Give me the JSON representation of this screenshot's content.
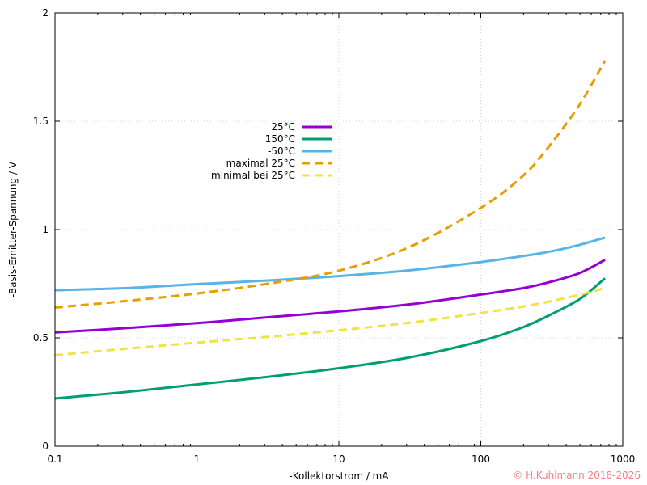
{
  "chart_data": {
    "type": "line",
    "title": "",
    "xlabel": "-Kollektorstrom / mA",
    "ylabel": "-Basis-Emitter-Spannung / V",
    "xscale": "log",
    "xlim": [
      0.1,
      1000
    ],
    "ylim": [
      0,
      2
    ],
    "x_ticks": [
      0.1,
      1,
      10,
      100,
      1000
    ],
    "x_tick_labels": [
      "0.1",
      "1",
      "10",
      "100",
      "1000"
    ],
    "y_ticks": [
      0,
      0.5,
      1,
      1.5,
      2
    ],
    "y_tick_labels": [
      "0",
      "0.5",
      "1",
      "1.5",
      "2"
    ],
    "grid": true,
    "legend_position": "center-left",
    "series": [
      {
        "name": "25°C",
        "color": "#9400d3",
        "dash": "solid",
        "x": [
          0.1,
          0.316,
          1,
          3.16,
          10,
          31.6,
          100,
          200,
          316,
          500,
          750
        ],
        "y": [
          0.525,
          0.545,
          0.568,
          0.595,
          0.622,
          0.655,
          0.7,
          0.73,
          0.76,
          0.8,
          0.86
        ]
      },
      {
        "name": "150°C",
        "color": "#009e73",
        "dash": "solid",
        "x": [
          0.1,
          0.316,
          1,
          3.16,
          10,
          31.6,
          100,
          200,
          316,
          500,
          750
        ],
        "y": [
          0.22,
          0.25,
          0.285,
          0.32,
          0.36,
          0.41,
          0.485,
          0.55,
          0.61,
          0.68,
          0.775
        ]
      },
      {
        "name": "-50°C",
        "color": "#56b4e9",
        "dash": "solid",
        "x": [
          0.1,
          0.316,
          1,
          3.16,
          10,
          31.6,
          100,
          200,
          316,
          500,
          750
        ],
        "y": [
          0.72,
          0.73,
          0.748,
          0.765,
          0.785,
          0.812,
          0.85,
          0.878,
          0.9,
          0.93,
          0.963
        ]
      },
      {
        "name": "maximal 25°C",
        "color": "#e69f00",
        "dash": "dashed",
        "x": [
          0.1,
          0.316,
          1,
          3.16,
          10,
          31.6,
          100,
          200,
          316,
          500,
          750
        ],
        "y": [
          0.64,
          0.67,
          0.705,
          0.75,
          0.81,
          0.92,
          1.1,
          1.25,
          1.4,
          1.58,
          1.78
        ]
      },
      {
        "name": "minimal bei 25°C",
        "color": "#f0e442",
        "dash": "dashed",
        "x": [
          0.1,
          0.316,
          1,
          3.16,
          10,
          31.6,
          100,
          200,
          316,
          500,
          750
        ],
        "y": [
          0.42,
          0.45,
          0.478,
          0.505,
          0.535,
          0.57,
          0.615,
          0.645,
          0.67,
          0.7,
          0.73
        ]
      }
    ]
  },
  "copyright": "© H.Kuhlmann 2018-2026"
}
